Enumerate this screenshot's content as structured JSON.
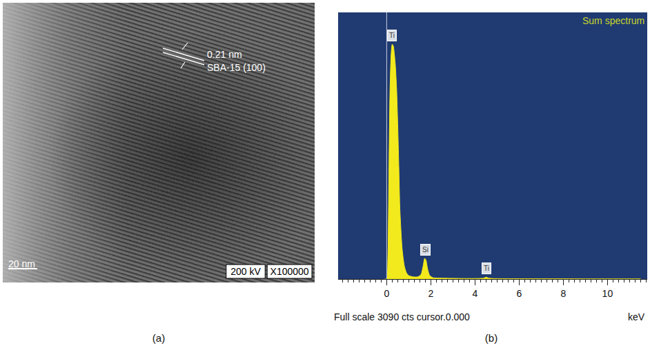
{
  "panel_a": {
    "label": "(a)",
    "spacing_label": "0.21 nm",
    "plane_label": "SBA-15 (100)",
    "scale_bar": "20 nm",
    "voltage": "200 kV",
    "magnification": "X100000"
  },
  "panel_b_label": "(b)",
  "chart_data": {
    "type": "area",
    "title": "Sum spectrum",
    "xlabel": "keV",
    "footer": "Full scale 3090 cts cursor.0.000",
    "x": [
      -0.1,
      0.0,
      0.05,
      0.1,
      0.15,
      0.2,
      0.25,
      0.3,
      0.35,
      0.4,
      0.45,
      0.5,
      0.55,
      0.6,
      0.7,
      0.8,
      0.9,
      1.0,
      1.2,
      1.4,
      1.55,
      1.65,
      1.72,
      1.78,
      1.85,
      1.95,
      2.1,
      2.5,
      3.0,
      3.5,
      4.0,
      4.4,
      4.5,
      4.6,
      4.8,
      5.5,
      7.0,
      9.0,
      11.5
    ],
    "values": [
      0,
      0,
      200,
      1200,
      2200,
      2600,
      2720,
      2700,
      2600,
      2450,
      2200,
      1800,
      1300,
      800,
      350,
      150,
      70,
      40,
      25,
      25,
      50,
      150,
      240,
      220,
      120,
      40,
      15,
      10,
      8,
      6,
      6,
      10,
      22,
      12,
      6,
      4,
      3,
      2,
      2
    ],
    "color": "#f2ea1c",
    "peak_labels": [
      {
        "label": "Ti",
        "x": 0.25
      },
      {
        "label": "Si",
        "x": 1.74
      },
      {
        "label": "Ti",
        "x": 4.51
      }
    ],
    "cursor": 0,
    "xlim": [
      -2.2,
      11.8
    ],
    "xticks": [
      0,
      2,
      4,
      6,
      8,
      10
    ],
    "ylim": [
      0,
      3090
    ],
    "yticks": [],
    "tick_labels": "x",
    "grid": false
  }
}
